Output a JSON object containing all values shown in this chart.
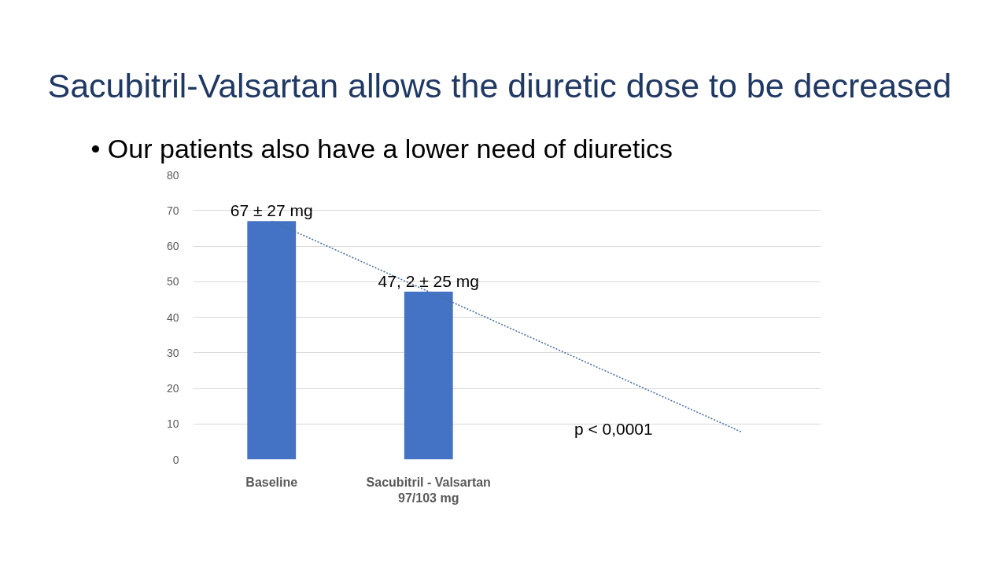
{
  "chart_data": {
    "type": "bar",
    "title": "Sacubitril-Valsartan allows the diuretic dose to be decreased",
    "subtitle": "• Our patients also have a lower need of diuretics",
    "categories": [
      "Baseline",
      "Sacubitril - Valsartan\n97/103 mg",
      null,
      null
    ],
    "series": [
      {
        "color": "#4472c4",
        "values": [
          67,
          47.2,
          null,
          null
        ],
        "value_labels": [
          "67 ± 27 mg",
          "47, 2 ± 25 mg",
          null,
          null
        ]
      },
      {
        "type": "line",
        "color": "#4a6fa5",
        "line_style": "dotted",
        "values": [
          67,
          47.2,
          27.4,
          7.6
        ]
      }
    ],
    "ylim": [
      0,
      80
    ],
    "yticks": [
      0,
      10,
      20,
      30,
      40,
      50,
      60,
      70,
      80
    ],
    "grid": "y",
    "annotations": [
      "p < 0,0001"
    ]
  }
}
